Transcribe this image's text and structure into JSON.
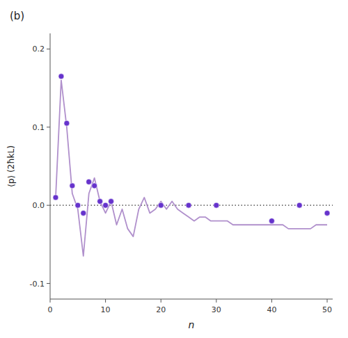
{
  "chart_data": {
    "type": "line",
    "title": "(b)",
    "x_label": "n",
    "y_label": "⟨p⟩ (2ħkL)",
    "xlim": [
      0,
      51
    ],
    "xticks": [
      0,
      10,
      20,
      30,
      40,
      50
    ],
    "ylim": [
      -0.12,
      0.22
    ],
    "yticks": [
      -0.1,
      {
        "value": 0.0,
        "label": "0.0"
      },
      0.1,
      0.2
    ],
    "grid": false,
    "series": [
      {
        "type": "line",
        "color": "#b090cc",
        "line_style": "solid",
        "x": [
          1,
          2,
          3,
          4,
          5,
          6,
          7,
          8,
          9,
          10,
          11,
          12,
          13,
          14,
          15,
          16,
          17,
          18,
          19,
          20,
          21,
          22,
          23,
          24,
          25,
          26,
          27,
          28,
          29,
          30,
          31,
          32,
          33,
          34,
          35,
          36,
          37,
          38,
          39,
          40,
          41,
          42,
          43,
          44,
          45,
          46,
          47,
          48,
          49,
          50
        ],
        "values": [
          0.01,
          0.16,
          0.1,
          0.015,
          -0.005,
          -0.065,
          0.015,
          0.035,
          0.005,
          -0.01,
          0.005,
          -0.025,
          -0.005,
          -0.03,
          -0.04,
          -0.005,
          0.01,
          -0.01,
          -0.005,
          0.005,
          -0.005,
          0.005,
          -0.005,
          -0.01,
          -0.015,
          -0.02,
          -0.015,
          -0.015,
          -0.02,
          -0.02,
          -0.02,
          -0.02,
          -0.025,
          -0.025,
          -0.025,
          -0.025,
          -0.025,
          -0.025,
          -0.025,
          -0.025,
          -0.025,
          -0.025,
          -0.03,
          -0.03,
          -0.03,
          -0.03,
          -0.03,
          -0.025,
          -0.025,
          -0.025
        ]
      },
      {
        "type": "scatter",
        "color": "#6633cc",
        "marker": "circle",
        "x": [
          1,
          2,
          3,
          4,
          5,
          6,
          7,
          8,
          9,
          10,
          11,
          20,
          25,
          30,
          40,
          45,
          50
        ],
        "values": [
          0.01,
          0.165,
          0.105,
          0.025,
          0.0,
          -0.01,
          0.03,
          0.025,
          0.005,
          0.0,
          0.005,
          0.0,
          0.0,
          0.0,
          -0.02,
          0.0,
          -0.01
        ]
      }
    ]
  }
}
